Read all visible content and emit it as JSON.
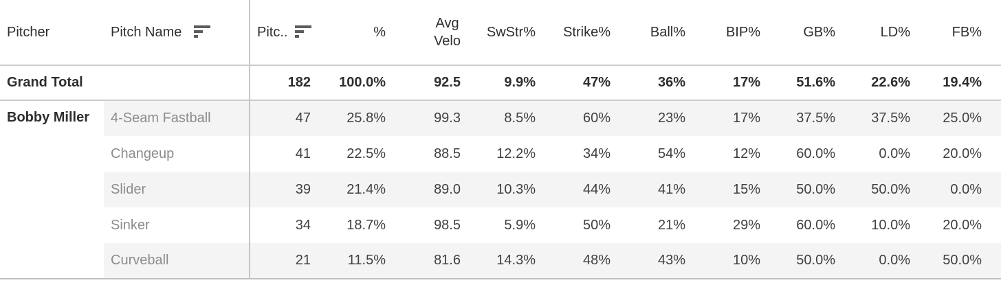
{
  "colors": {
    "band": "#f4f4f4",
    "grid_line": "#c5c5c5",
    "strong_text": "#2e2e2e",
    "value_text": "#404040",
    "pitch_text": "#8c8c8c"
  },
  "icons": {
    "sort_descending": "sort-descending-icon"
  },
  "table": {
    "columns": [
      {
        "label": "Pitcher",
        "sorted": false
      },
      {
        "label": "Pitch Name",
        "sorted": true
      },
      {
        "label": "Pitc..",
        "sorted": true
      },
      {
        "label": "%",
        "sorted": false
      },
      {
        "label": "Avg\nVelo",
        "sorted": false
      },
      {
        "label": "SwStr%",
        "sorted": false
      },
      {
        "label": "Strike%",
        "sorted": false
      },
      {
        "label": "Ball%",
        "sorted": false
      },
      {
        "label": "BIP%",
        "sorted": false
      },
      {
        "label": "GB%",
        "sorted": false
      },
      {
        "label": "LD%",
        "sorted": false
      },
      {
        "label": "FB%",
        "sorted": false
      }
    ],
    "grand_total": {
      "label": "Grand Total",
      "values": [
        "182",
        "100.0%",
        "92.5",
        "9.9%",
        "47%",
        "36%",
        "17%",
        "51.6%",
        "22.6%",
        "19.4%"
      ]
    },
    "pitcher": "Bobby Miller",
    "rows": [
      {
        "pitch": "4-Seam Fastball",
        "values": [
          "47",
          "25.8%",
          "99.3",
          "8.5%",
          "60%",
          "23%",
          "17%",
          "37.5%",
          "37.5%",
          "25.0%"
        ]
      },
      {
        "pitch": "Changeup",
        "values": [
          "41",
          "22.5%",
          "88.5",
          "12.2%",
          "34%",
          "54%",
          "12%",
          "60.0%",
          "0.0%",
          "20.0%"
        ]
      },
      {
        "pitch": "Slider",
        "values": [
          "39",
          "21.4%",
          "89.0",
          "10.3%",
          "44%",
          "41%",
          "15%",
          "50.0%",
          "50.0%",
          "0.0%"
        ]
      },
      {
        "pitch": "Sinker",
        "values": [
          "34",
          "18.7%",
          "98.5",
          "5.9%",
          "50%",
          "21%",
          "29%",
          "60.0%",
          "10.0%",
          "20.0%"
        ]
      },
      {
        "pitch": "Curveball",
        "values": [
          "21",
          "11.5%",
          "81.6",
          "14.3%",
          "48%",
          "43%",
          "10%",
          "50.0%",
          "0.0%",
          "50.0%"
        ]
      }
    ]
  },
  "chart_data": {
    "type": "table",
    "title": "",
    "column_headers": [
      "Pitcher",
      "Pitch Name",
      "Pitc..",
      "%",
      "Avg Velo",
      "SwStr%",
      "Strike%",
      "Ball%",
      "BIP%",
      "GB%",
      "LD%",
      "FB%"
    ],
    "grand_total_row": {
      "label": "Grand Total",
      "pitch_count": 182,
      "pct": 100.0,
      "avg_velo": 92.5,
      "swstr_pct": 9.9,
      "strike_pct": 47,
      "ball_pct": 36,
      "bip_pct": 17,
      "gb_pct": 51.6,
      "ld_pct": 22.6,
      "fb_pct": 19.4
    },
    "rows": [
      {
        "pitcher": "Bobby Miller",
        "pitch_name": "4-Seam Fastball",
        "pitch_count": 47,
        "pct": 25.8,
        "avg_velo": 99.3,
        "swstr_pct": 8.5,
        "strike_pct": 60,
        "ball_pct": 23,
        "bip_pct": 17,
        "gb_pct": 37.5,
        "ld_pct": 37.5,
        "fb_pct": 25.0
      },
      {
        "pitcher": "Bobby Miller",
        "pitch_name": "Changeup",
        "pitch_count": 41,
        "pct": 22.5,
        "avg_velo": 88.5,
        "swstr_pct": 12.2,
        "strike_pct": 34,
        "ball_pct": 54,
        "bip_pct": 12,
        "gb_pct": 60.0,
        "ld_pct": 0.0,
        "fb_pct": 20.0
      },
      {
        "pitcher": "Bobby Miller",
        "pitch_name": "Slider",
        "pitch_count": 39,
        "pct": 21.4,
        "avg_velo": 89.0,
        "swstr_pct": 10.3,
        "strike_pct": 44,
        "ball_pct": 41,
        "bip_pct": 15,
        "gb_pct": 50.0,
        "ld_pct": 50.0,
        "fb_pct": 0.0
      },
      {
        "pitcher": "Bobby Miller",
        "pitch_name": "Sinker",
        "pitch_count": 34,
        "pct": 18.7,
        "avg_velo": 98.5,
        "swstr_pct": 5.9,
        "strike_pct": 50,
        "ball_pct": 21,
        "bip_pct": 29,
        "gb_pct": 60.0,
        "ld_pct": 10.0,
        "fb_pct": 20.0
      },
      {
        "pitcher": "Bobby Miller",
        "pitch_name": "Curveball",
        "pitch_count": 21,
        "pct": 11.5,
        "avg_velo": 81.6,
        "swstr_pct": 14.3,
        "strike_pct": 48,
        "ball_pct": 43,
        "bip_pct": 10,
        "gb_pct": 50.0,
        "ld_pct": 0.0,
        "fb_pct": 50.0
      }
    ],
    "layout": {
      "row_banding": true,
      "banded_rows": [
        0,
        2,
        4
      ],
      "sorted_columns": [
        "Pitch Name",
        "Pitc.."
      ],
      "sort_direction": "descending"
    }
  }
}
